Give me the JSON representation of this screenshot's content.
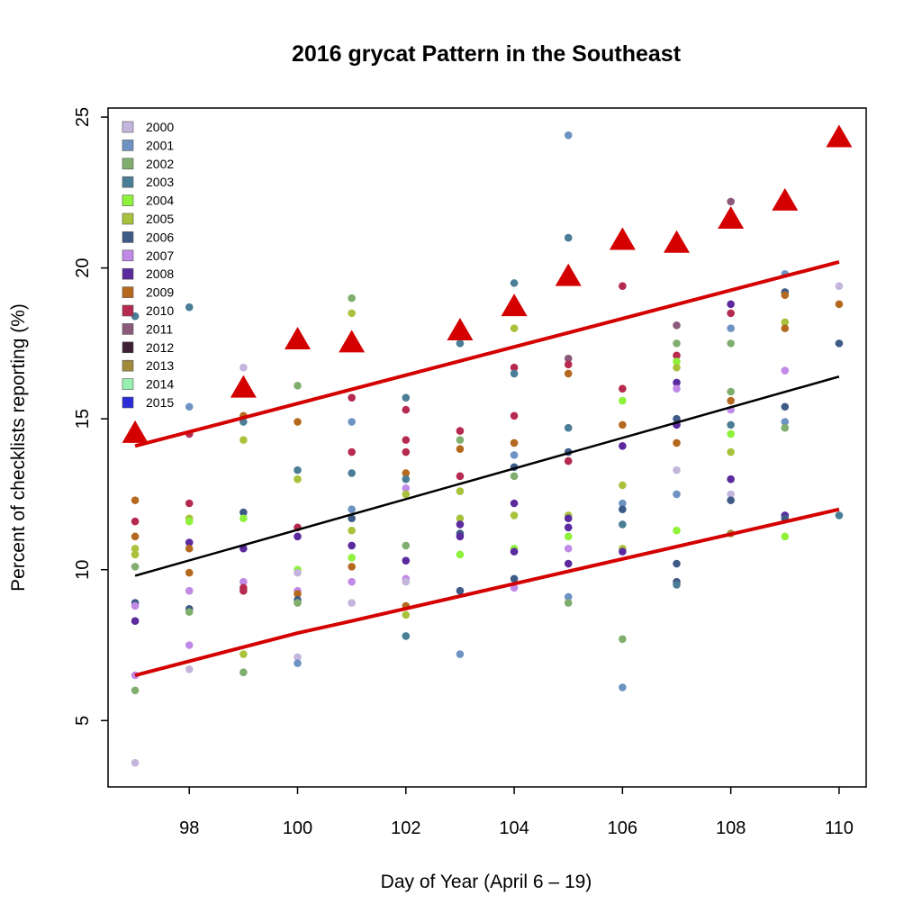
{
  "chart_data": {
    "type": "scatter",
    "title": "2016 grycat Pattern in the Southeast",
    "xlabel": "Day of Year (April 6 – 19)",
    "ylabel": "Percent of checklists reporting (%)",
    "xlim": [
      96.5,
      110.5
    ],
    "ylim": [
      2.8,
      25.3
    ],
    "x_ticks": [
      98,
      100,
      102,
      104,
      106,
      108,
      110
    ],
    "y_ticks": [
      5,
      10,
      15,
      20,
      25
    ],
    "grid": false,
    "legend_position": "top-left",
    "legend": [
      {
        "label": "2000",
        "color": "#c3b5dc"
      },
      {
        "label": "2001",
        "color": "#6e93c2"
      },
      {
        "label": "2002",
        "color": "#7fae6e"
      },
      {
        "label": "2003",
        "color": "#4a7d96"
      },
      {
        "label": "2004",
        "color": "#8ef13a"
      },
      {
        "label": "2005",
        "color": "#a9c23b"
      },
      {
        "label": "2006",
        "color": "#3e5a86"
      },
      {
        "label": "2007",
        "color": "#c08ae6"
      },
      {
        "label": "2008",
        "color": "#5a2a9e"
      },
      {
        "label": "2009",
        "color": "#b5691f"
      },
      {
        "label": "2010",
        "color": "#b52a4e"
      },
      {
        "label": "2011",
        "color": "#8a5a7a"
      },
      {
        "label": "2012",
        "color": "#3f1f36"
      },
      {
        "label": "2013",
        "color": "#a08a3a"
      },
      {
        "label": "2014",
        "color": "#98f0b0"
      },
      {
        "label": "2015",
        "color": "#2a2ad8"
      }
    ],
    "points": [
      {
        "x": 97,
        "y": 18.4,
        "c": "#4a7d96"
      },
      {
        "x": 97,
        "y": 12.3,
        "c": "#b5691f"
      },
      {
        "x": 97,
        "y": 11.6,
        "c": "#b52a4e"
      },
      {
        "x": 97,
        "y": 11.1,
        "c": "#b5691f"
      },
      {
        "x": 97,
        "y": 10.7,
        "c": "#a9c23b"
      },
      {
        "x": 97,
        "y": 10.5,
        "c": "#a9c23b"
      },
      {
        "x": 97,
        "y": 10.1,
        "c": "#7fae6e"
      },
      {
        "x": 97,
        "y": 8.9,
        "c": "#3e5a86"
      },
      {
        "x": 97,
        "y": 8.8,
        "c": "#c08ae6"
      },
      {
        "x": 97,
        "y": 8.3,
        "c": "#5a2a9e"
      },
      {
        "x": 97,
        "y": 6.5,
        "c": "#c08ae6"
      },
      {
        "x": 97,
        "y": 6.0,
        "c": "#7fae6e"
      },
      {
        "x": 97,
        "y": 3.6,
        "c": "#c3b5dc"
      },
      {
        "x": 98,
        "y": 18.7,
        "c": "#4a7d96"
      },
      {
        "x": 98,
        "y": 15.4,
        "c": "#6e93c2"
      },
      {
        "x": 98,
        "y": 14.5,
        "c": "#b52a4e"
      },
      {
        "x": 98,
        "y": 12.2,
        "c": "#b52a4e"
      },
      {
        "x": 98,
        "y": 11.7,
        "c": "#a9c23b"
      },
      {
        "x": 98,
        "y": 11.6,
        "c": "#8ef13a"
      },
      {
        "x": 98,
        "y": 10.9,
        "c": "#5a2a9e"
      },
      {
        "x": 98,
        "y": 10.7,
        "c": "#b5691f"
      },
      {
        "x": 98,
        "y": 9.9,
        "c": "#b5691f"
      },
      {
        "x": 98,
        "y": 9.3,
        "c": "#c08ae6"
      },
      {
        "x": 98,
        "y": 8.7,
        "c": "#3e5a86"
      },
      {
        "x": 98,
        "y": 8.6,
        "c": "#7fae6e"
      },
      {
        "x": 98,
        "y": 7.5,
        "c": "#c08ae6"
      },
      {
        "x": 98,
        "y": 6.7,
        "c": "#c3b5dc"
      },
      {
        "x": 99,
        "y": 16.7,
        "c": "#c3b5dc"
      },
      {
        "x": 99,
        "y": 15.1,
        "c": "#b5691f"
      },
      {
        "x": 99,
        "y": 14.9,
        "c": "#4a7d96"
      },
      {
        "x": 99,
        "y": 14.3,
        "c": "#a9c23b"
      },
      {
        "x": 99,
        "y": 11.9,
        "c": "#3e5a86"
      },
      {
        "x": 99,
        "y": 11.7,
        "c": "#8ef13a"
      },
      {
        "x": 99,
        "y": 10.7,
        "c": "#5a2a9e"
      },
      {
        "x": 99,
        "y": 9.6,
        "c": "#c08ae6"
      },
      {
        "x": 99,
        "y": 9.4,
        "c": "#b52a4e"
      },
      {
        "x": 99,
        "y": 9.3,
        "c": "#b52a4e"
      },
      {
        "x": 99,
        "y": 7.2,
        "c": "#a9c23b"
      },
      {
        "x": 99,
        "y": 6.6,
        "c": "#7fae6e"
      },
      {
        "x": 100,
        "y": 16.1,
        "c": "#7fae6e"
      },
      {
        "x": 100,
        "y": 14.9,
        "c": "#b5691f"
      },
      {
        "x": 100,
        "y": 13.3,
        "c": "#4a7d96"
      },
      {
        "x": 100,
        "y": 13.0,
        "c": "#a9c23b"
      },
      {
        "x": 100,
        "y": 11.4,
        "c": "#b52a4e"
      },
      {
        "x": 100,
        "y": 11.1,
        "c": "#5a2a9e"
      },
      {
        "x": 100,
        "y": 10.0,
        "c": "#8ef13a"
      },
      {
        "x": 100,
        "y": 9.9,
        "c": "#c3b5dc"
      },
      {
        "x": 100,
        "y": 9.3,
        "c": "#c08ae6"
      },
      {
        "x": 100,
        "y": 9.2,
        "c": "#b5691f"
      },
      {
        "x": 100,
        "y": 9.0,
        "c": "#3e5a86"
      },
      {
        "x": 100,
        "y": 8.9,
        "c": "#7fae6e"
      },
      {
        "x": 100,
        "y": 7.1,
        "c": "#c3b5dc"
      },
      {
        "x": 100,
        "y": 6.9,
        "c": "#6e93c2"
      },
      {
        "x": 101,
        "y": 19.0,
        "c": "#7fae6e"
      },
      {
        "x": 101,
        "y": 18.5,
        "c": "#a9c23b"
      },
      {
        "x": 101,
        "y": 15.7,
        "c": "#b52a4e"
      },
      {
        "x": 101,
        "y": 14.9,
        "c": "#6e93c2"
      },
      {
        "x": 101,
        "y": 13.9,
        "c": "#b52a4e"
      },
      {
        "x": 101,
        "y": 13.2,
        "c": "#4a7d96"
      },
      {
        "x": 101,
        "y": 12.0,
        "c": "#6e93c2"
      },
      {
        "x": 101,
        "y": 11.7,
        "c": "#3e5a86"
      },
      {
        "x": 101,
        "y": 11.3,
        "c": "#a9c23b"
      },
      {
        "x": 101,
        "y": 10.8,
        "c": "#5a2a9e"
      },
      {
        "x": 101,
        "y": 10.4,
        "c": "#8ef13a"
      },
      {
        "x": 101,
        "y": 10.1,
        "c": "#b5691f"
      },
      {
        "x": 101,
        "y": 9.6,
        "c": "#c08ae6"
      },
      {
        "x": 101,
        "y": 8.9,
        "c": "#c3b5dc"
      },
      {
        "x": 102,
        "y": 15.7,
        "c": "#4a7d96"
      },
      {
        "x": 102,
        "y": 15.3,
        "c": "#b52a4e"
      },
      {
        "x": 102,
        "y": 14.3,
        "c": "#b52a4e"
      },
      {
        "x": 102,
        "y": 13.9,
        "c": "#b52a4e"
      },
      {
        "x": 102,
        "y": 13.2,
        "c": "#b5691f"
      },
      {
        "x": 102,
        "y": 13.0,
        "c": "#4a7d96"
      },
      {
        "x": 102,
        "y": 12.7,
        "c": "#c08ae6"
      },
      {
        "x": 102,
        "y": 12.5,
        "c": "#a9c23b"
      },
      {
        "x": 102,
        "y": 10.8,
        "c": "#7fae6e"
      },
      {
        "x": 102,
        "y": 10.3,
        "c": "#5a2a9e"
      },
      {
        "x": 102,
        "y": 9.7,
        "c": "#c08ae6"
      },
      {
        "x": 102,
        "y": 9.6,
        "c": "#c3b5dc"
      },
      {
        "x": 102,
        "y": 8.8,
        "c": "#b5691f"
      },
      {
        "x": 102,
        "y": 8.5,
        "c": "#a9c23b"
      },
      {
        "x": 102,
        "y": 7.8,
        "c": "#4a7d96"
      },
      {
        "x": 103,
        "y": 17.5,
        "c": "#4a7d96"
      },
      {
        "x": 103,
        "y": 14.6,
        "c": "#b52a4e"
      },
      {
        "x": 103,
        "y": 14.3,
        "c": "#7fae6e"
      },
      {
        "x": 103,
        "y": 14.0,
        "c": "#b5691f"
      },
      {
        "x": 103,
        "y": 13.1,
        "c": "#b52a4e"
      },
      {
        "x": 103,
        "y": 12.6,
        "c": "#a9c23b"
      },
      {
        "x": 103,
        "y": 11.7,
        "c": "#a9c23b"
      },
      {
        "x": 103,
        "y": 11.5,
        "c": "#5a2a9e"
      },
      {
        "x": 103,
        "y": 11.2,
        "c": "#3e5a86"
      },
      {
        "x": 103,
        "y": 11.1,
        "c": "#5a2a9e"
      },
      {
        "x": 103,
        "y": 10.5,
        "c": "#8ef13a"
      },
      {
        "x": 103,
        "y": 9.3,
        "c": "#3e5a86"
      },
      {
        "x": 103,
        "y": 7.2,
        "c": "#6e93c2"
      },
      {
        "x": 104,
        "y": 19.5,
        "c": "#4a7d96"
      },
      {
        "x": 104,
        "y": 18.0,
        "c": "#a9c23b"
      },
      {
        "x": 104,
        "y": 16.7,
        "c": "#b52a4e"
      },
      {
        "x": 104,
        "y": 16.5,
        "c": "#4a7d96"
      },
      {
        "x": 104,
        "y": 15.1,
        "c": "#b52a4e"
      },
      {
        "x": 104,
        "y": 14.2,
        "c": "#b5691f"
      },
      {
        "x": 104,
        "y": 13.8,
        "c": "#6e93c2"
      },
      {
        "x": 104,
        "y": 13.4,
        "c": "#3e5a86"
      },
      {
        "x": 104,
        "y": 13.1,
        "c": "#7fae6e"
      },
      {
        "x": 104,
        "y": 12.2,
        "c": "#5a2a9e"
      },
      {
        "x": 104,
        "y": 11.8,
        "c": "#a9c23b"
      },
      {
        "x": 104,
        "y": 10.7,
        "c": "#8ef13a"
      },
      {
        "x": 104,
        "y": 10.6,
        "c": "#5a2a9e"
      },
      {
        "x": 104,
        "y": 9.7,
        "c": "#3e5a86"
      },
      {
        "x": 104,
        "y": 9.4,
        "c": "#c08ae6"
      },
      {
        "x": 105,
        "y": 24.4,
        "c": "#6e93c2"
      },
      {
        "x": 105,
        "y": 21.0,
        "c": "#4a7d96"
      },
      {
        "x": 105,
        "y": 17.0,
        "c": "#8a5a7a"
      },
      {
        "x": 105,
        "y": 16.8,
        "c": "#b52a4e"
      },
      {
        "x": 105,
        "y": 16.5,
        "c": "#b5691f"
      },
      {
        "x": 105,
        "y": 14.7,
        "c": "#4a7d96"
      },
      {
        "x": 105,
        "y": 13.9,
        "c": "#3e5a86"
      },
      {
        "x": 105,
        "y": 13.6,
        "c": "#b52a4e"
      },
      {
        "x": 105,
        "y": 11.8,
        "c": "#a9c23b"
      },
      {
        "x": 105,
        "y": 11.7,
        "c": "#5a2a9e"
      },
      {
        "x": 105,
        "y": 11.4,
        "c": "#5a2a9e"
      },
      {
        "x": 105,
        "y": 11.1,
        "c": "#8ef13a"
      },
      {
        "x": 105,
        "y": 10.7,
        "c": "#c08ae6"
      },
      {
        "x": 105,
        "y": 10.2,
        "c": "#5a2a9e"
      },
      {
        "x": 105,
        "y": 9.1,
        "c": "#6e93c2"
      },
      {
        "x": 105,
        "y": 8.9,
        "c": "#7fae6e"
      },
      {
        "x": 106,
        "y": 19.4,
        "c": "#b52a4e"
      },
      {
        "x": 106,
        "y": 16.0,
        "c": "#b52a4e"
      },
      {
        "x": 106,
        "y": 15.6,
        "c": "#8ef13a"
      },
      {
        "x": 106,
        "y": 14.8,
        "c": "#b5691f"
      },
      {
        "x": 106,
        "y": 14.1,
        "c": "#5a2a9e"
      },
      {
        "x": 106,
        "y": 12.8,
        "c": "#a9c23b"
      },
      {
        "x": 106,
        "y": 12.2,
        "c": "#6e93c2"
      },
      {
        "x": 106,
        "y": 12.0,
        "c": "#3e5a86"
      },
      {
        "x": 106,
        "y": 11.5,
        "c": "#4a7d96"
      },
      {
        "x": 106,
        "y": 10.7,
        "c": "#a9c23b"
      },
      {
        "x": 106,
        "y": 10.6,
        "c": "#5a2a9e"
      },
      {
        "x": 106,
        "y": 7.7,
        "c": "#7fae6e"
      },
      {
        "x": 106,
        "y": 6.1,
        "c": "#6e93c2"
      },
      {
        "x": 107,
        "y": 18.1,
        "c": "#8a5a7a"
      },
      {
        "x": 107,
        "y": 17.5,
        "c": "#7fae6e"
      },
      {
        "x": 107,
        "y": 17.1,
        "c": "#b52a4e"
      },
      {
        "x": 107,
        "y": 16.9,
        "c": "#8ef13a"
      },
      {
        "x": 107,
        "y": 16.7,
        "c": "#a9c23b"
      },
      {
        "x": 107,
        "y": 16.2,
        "c": "#5a2a9e"
      },
      {
        "x": 107,
        "y": 16.0,
        "c": "#c08ae6"
      },
      {
        "x": 107,
        "y": 15.0,
        "c": "#3e5a86"
      },
      {
        "x": 107,
        "y": 14.8,
        "c": "#5a2a9e"
      },
      {
        "x": 107,
        "y": 14.2,
        "c": "#b5691f"
      },
      {
        "x": 107,
        "y": 13.3,
        "c": "#c3b5dc"
      },
      {
        "x": 107,
        "y": 12.5,
        "c": "#6e93c2"
      },
      {
        "x": 107,
        "y": 11.3,
        "c": "#8ef13a"
      },
      {
        "x": 107,
        "y": 10.2,
        "c": "#3e5a86"
      },
      {
        "x": 107,
        "y": 9.6,
        "c": "#3e5a86"
      },
      {
        "x": 107,
        "y": 9.5,
        "c": "#4a7d96"
      },
      {
        "x": 108,
        "y": 22.2,
        "c": "#8a5a7a"
      },
      {
        "x": 108,
        "y": 18.8,
        "c": "#5a2a9e"
      },
      {
        "x": 108,
        "y": 18.5,
        "c": "#b52a4e"
      },
      {
        "x": 108,
        "y": 18.0,
        "c": "#6e93c2"
      },
      {
        "x": 108,
        "y": 17.5,
        "c": "#7fae6e"
      },
      {
        "x": 108,
        "y": 15.9,
        "c": "#7fae6e"
      },
      {
        "x": 108,
        "y": 15.6,
        "c": "#b5691f"
      },
      {
        "x": 108,
        "y": 15.3,
        "c": "#c08ae6"
      },
      {
        "x": 108,
        "y": 14.8,
        "c": "#4a7d96"
      },
      {
        "x": 108,
        "y": 14.5,
        "c": "#8ef13a"
      },
      {
        "x": 108,
        "y": 13.9,
        "c": "#a9c23b"
      },
      {
        "x": 108,
        "y": 13.0,
        "c": "#5a2a9e"
      },
      {
        "x": 108,
        "y": 12.5,
        "c": "#c3b5dc"
      },
      {
        "x": 108,
        "y": 12.3,
        "c": "#3e5a86"
      },
      {
        "x": 108,
        "y": 11.2,
        "c": "#a08a3a"
      },
      {
        "x": 109,
        "y": 19.8,
        "c": "#6e93c2"
      },
      {
        "x": 109,
        "y": 19.2,
        "c": "#3e5a86"
      },
      {
        "x": 109,
        "y": 19.1,
        "c": "#b5691f"
      },
      {
        "x": 109,
        "y": 18.2,
        "c": "#a9c23b"
      },
      {
        "x": 109,
        "y": 18.0,
        "c": "#b5691f"
      },
      {
        "x": 109,
        "y": 16.6,
        "c": "#c08ae6"
      },
      {
        "x": 109,
        "y": 15.4,
        "c": "#3e5a86"
      },
      {
        "x": 109,
        "y": 14.9,
        "c": "#6e93c2"
      },
      {
        "x": 109,
        "y": 14.7,
        "c": "#7fae6e"
      },
      {
        "x": 109,
        "y": 11.8,
        "c": "#5a2a9e"
      },
      {
        "x": 109,
        "y": 11.7,
        "c": "#3e5a86"
      },
      {
        "x": 109,
        "y": 11.1,
        "c": "#8ef13a"
      },
      {
        "x": 110,
        "y": 19.4,
        "c": "#c3b5dc"
      },
      {
        "x": 110,
        "y": 18.8,
        "c": "#b5691f"
      },
      {
        "x": 110,
        "y": 17.5,
        "c": "#3e5a86"
      },
      {
        "x": 110,
        "y": 11.8,
        "c": "#4a7d96"
      }
    ],
    "series_2016": {
      "color": "#d40000",
      "marker": "triangle",
      "x": [
        97,
        99,
        100,
        101,
        103,
        104,
        105,
        106,
        107,
        108,
        109,
        110
      ],
      "y": [
        14.5,
        16.0,
        17.6,
        17.5,
        17.9,
        18.7,
        19.7,
        20.9,
        20.8,
        21.6,
        22.2,
        24.3
      ]
    },
    "trend_lines": [
      {
        "role": "mean",
        "color": "#000000",
        "x": [
          97,
          110
        ],
        "y": [
          9.8,
          16.4
        ]
      },
      {
        "role": "upper",
        "color": "#d40000",
        "x": [
          97,
          110
        ],
        "y": [
          14.1,
          20.2
        ]
      },
      {
        "role": "lower",
        "color": "#d40000",
        "x": [
          97,
          100,
          101,
          110
        ],
        "y": [
          6.5,
          7.9,
          8.3,
          12.0
        ]
      }
    ]
  }
}
